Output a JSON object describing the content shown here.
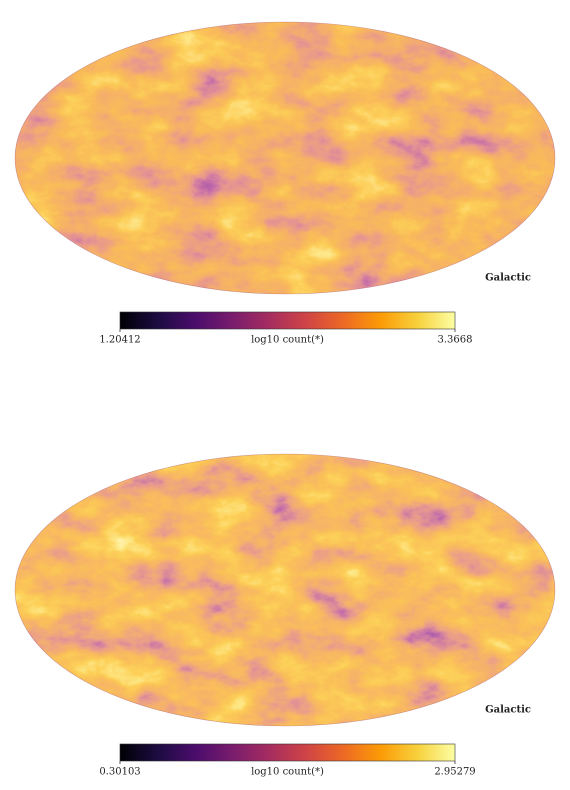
{
  "chart_data": [
    {
      "type": "mollweide",
      "coord": "Galactic",
      "colormap": "inferno",
      "colorbar_label": "log10 count(*)",
      "clim": [
        1.20412,
        3.3668
      ],
      "cticks": [
        1.20412,
        3.3668
      ]
    },
    {
      "type": "mollweide",
      "coord": "Galactic",
      "colormap": "inferno",
      "colorbar_label": "log10 count(*)",
      "clim": [
        0.30103,
        2.95279
      ],
      "cticks": [
        0.30103,
        2.95279
      ]
    }
  ]
}
